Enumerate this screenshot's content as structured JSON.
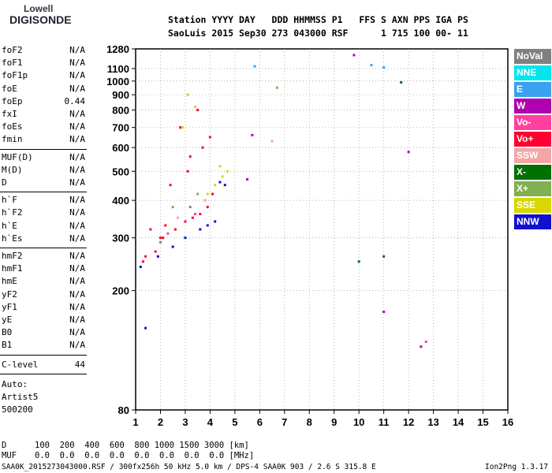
{
  "logo": {
    "line1": "Lowell",
    "line2": "DIGISONDE"
  },
  "header": {
    "line1": "Station YYYY DAY   DDD HHMMSS P1   FFS S AXN PPS IGA PS",
    "line2": "SaoLuis 2015 Sep30 273 043000 RSF      1 715 100 00- 11"
  },
  "params": {
    "g1": [
      {
        "k": "foF2",
        "v": "N/A"
      },
      {
        "k": "foF1",
        "v": "N/A"
      },
      {
        "k": "foF1p",
        "v": "N/A"
      },
      {
        "k": "foE",
        "v": "N/A"
      },
      {
        "k": "foEp",
        "v": "0.44"
      },
      {
        "k": "fxI",
        "v": "N/A"
      },
      {
        "k": "foEs",
        "v": "N/A"
      },
      {
        "k": "fmin",
        "v": "N/A"
      }
    ],
    "g2": [
      {
        "k": "MUF(D)",
        "v": "N/A"
      },
      {
        "k": "M(D)",
        "v": "N/A"
      },
      {
        "k": "D",
        "v": "N/A"
      }
    ],
    "g3": [
      {
        "k": "h`F",
        "v": "N/A"
      },
      {
        "k": "h`F2",
        "v": "N/A"
      },
      {
        "k": "h`E",
        "v": "N/A"
      },
      {
        "k": "h`Es",
        "v": "N/A"
      }
    ],
    "g4": [
      {
        "k": "hmF2",
        "v": "N/A"
      },
      {
        "k": "hmF1",
        "v": "N/A"
      },
      {
        "k": "hmE",
        "v": "N/A"
      },
      {
        "k": "yF2",
        "v": "N/A"
      },
      {
        "k": "yF1",
        "v": "N/A"
      },
      {
        "k": "yE",
        "v": "N/A"
      },
      {
        "k": "B0",
        "v": "N/A"
      },
      {
        "k": "B1",
        "v": "N/A"
      }
    ],
    "clevel": {
      "k": "C-level",
      "v": "44"
    }
  },
  "auto": {
    "l1": "Auto:",
    "l2": "Artist5",
    "l3": "500200"
  },
  "legend": [
    {
      "label": "NoVal",
      "color": "#808080"
    },
    {
      "label": "NNE",
      "color": "#00e5ee"
    },
    {
      "label": "E",
      "color": "#3aa0f0"
    },
    {
      "label": "W",
      "color": "#b000b0"
    },
    {
      "label": "Vo-",
      "color": "#ff40a0"
    },
    {
      "label": "Vo+",
      "color": "#ff0030"
    },
    {
      "label": "SSW",
      "color": "#f4a6a6"
    },
    {
      "label": "X-",
      "color": "#007000"
    },
    {
      "label": "X+",
      "color": "#80b050"
    },
    {
      "label": "SSE",
      "color": "#d8d800"
    },
    {
      "label": "NNW",
      "color": "#1010d0"
    }
  ],
  "chart_data": {
    "type": "scatter",
    "title": "",
    "xlabel": "",
    "ylabel": "",
    "xlim": [
      1,
      16
    ],
    "ylim": [
      80,
      1280
    ],
    "y_scale": "log",
    "x_ticks": [
      1,
      2,
      3,
      4,
      5,
      6,
      7,
      8,
      9,
      10,
      11,
      12,
      13,
      14,
      15,
      16
    ],
    "y_ticks": [
      80,
      200,
      300,
      400,
      500,
      600,
      700,
      800,
      900,
      1000,
      1100,
      1280
    ],
    "y_grid": [
      200,
      300,
      400,
      500,
      600,
      700,
      800,
      900,
      1000,
      1100
    ],
    "x_grid": [
      2,
      3,
      4,
      5,
      6,
      7,
      8,
      9,
      10,
      11,
      12,
      13,
      14,
      15
    ],
    "grid": true,
    "legend_position": "right",
    "series": [
      {
        "name": "Vo+",
        "color": "#ff0030",
        "x": [
          1.3,
          1.8,
          2.0,
          2.2,
          2.6,
          3.0,
          3.3,
          3.6,
          3.9,
          4.1,
          2.4,
          3.1,
          3.7,
          1.6,
          2.8,
          3.5,
          4.0,
          3.2,
          2.1,
          1.4
        ],
        "y": [
          250,
          270,
          300,
          330,
          320,
          340,
          350,
          360,
          380,
          420,
          450,
          500,
          600,
          320,
          700,
          800,
          650,
          560,
          300,
          260
        ]
      },
      {
        "name": "NNW",
        "color": "#1010d0",
        "x": [
          1.2,
          1.9,
          2.5,
          3.0,
          3.6,
          4.2,
          4.6,
          4.4,
          3.9,
          1.4
        ],
        "y": [
          240,
          260,
          280,
          300,
          320,
          340,
          450,
          460,
          330,
          150
        ]
      },
      {
        "name": "SSE",
        "color": "#d8d800",
        "x": [
          3.9,
          4.2,
          4.5,
          4.7,
          3.1,
          3.4,
          2.9,
          4.4
        ],
        "y": [
          420,
          450,
          480,
          500,
          900,
          820,
          700,
          520
        ]
      },
      {
        "name": "W",
        "color": "#b000b0",
        "x": [
          9.8,
          5.7,
          5.5,
          11.0,
          12.5,
          12.0
        ],
        "y": [
          1220,
          660,
          470,
          170,
          130,
          580
        ]
      },
      {
        "name": "X-",
        "color": "#007000",
        "x": [
          11.7,
          11.0,
          10.0
        ],
        "y": [
          990,
          260,
          250
        ]
      },
      {
        "name": "E",
        "color": "#3aa0f0",
        "x": [
          5.8,
          10.5,
          11.0
        ],
        "y": [
          1120,
          1130,
          1110
        ]
      },
      {
        "name": "X+",
        "color": "#80b050",
        "x": [
          6.7,
          3.5,
          2.5
        ],
        "y": [
          950,
          420,
          380
        ]
      },
      {
        "name": "SSW",
        "color": "#f4a6a6",
        "x": [
          6.5,
          2.7,
          3.8
        ],
        "y": [
          630,
          350,
          400
        ]
      },
      {
        "name": "Vo-",
        "color": "#ff40a0",
        "x": [
          2.3,
          3.4,
          12.7
        ],
        "y": [
          310,
          360,
          135
        ]
      },
      {
        "name": "NoVal",
        "color": "#808080",
        "x": [
          2.0,
          3.2
        ],
        "y": [
          290,
          380
        ]
      }
    ]
  },
  "table": {
    "row1_label": "D",
    "row1": "100  200  400  600  800 1000 1500 3000 [km]",
    "row2_label": "MUF",
    "row2": "0.0  0.0  0.0  0.0  0.0  0.0  0.0  0.0 [MHz]"
  },
  "footer": {
    "left": "SAA0K_2015273043000.RSF / 300fx256h 50 kHz 5.0 km / DPS-4 SAA0K 903 / 2.6 S 315.8 E",
    "right": "Ion2Png 1.3.17"
  }
}
